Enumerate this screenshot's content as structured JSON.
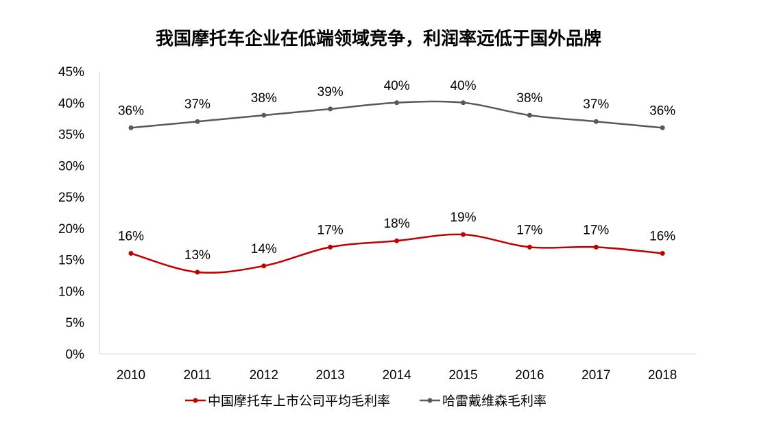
{
  "chart_data": {
    "type": "line",
    "title": "我国摩托车企业在低端领域竞争，利润率远低于国外品牌",
    "categories": [
      "2010",
      "2011",
      "2012",
      "2013",
      "2014",
      "2015",
      "2016",
      "2017",
      "2018"
    ],
    "ylim": [
      0,
      45
    ],
    "yticks": [
      "0%",
      "5%",
      "10%",
      "15%",
      "20%",
      "25%",
      "30%",
      "35%",
      "40%",
      "45%"
    ],
    "grid": false,
    "legend_position": "bottom",
    "smooth": true,
    "series": [
      {
        "name": "中国摩托车上市公司平均毛利率",
        "color": "#C00000",
        "values": [
          16,
          13,
          14,
          17,
          18,
          19,
          17,
          17,
          16
        ],
        "labels": [
          "16%",
          "13%",
          "14%",
          "17%",
          "18%",
          "19%",
          "17%",
          "17%",
          "16%"
        ]
      },
      {
        "name": "哈雷戴维森毛利率",
        "color": "#595959",
        "values": [
          36,
          37,
          38,
          39,
          40,
          40,
          38,
          37,
          36
        ],
        "labels": [
          "36%",
          "37%",
          "38%",
          "39%",
          "40%",
          "40%",
          "38%",
          "37%",
          "36%"
        ]
      }
    ]
  }
}
